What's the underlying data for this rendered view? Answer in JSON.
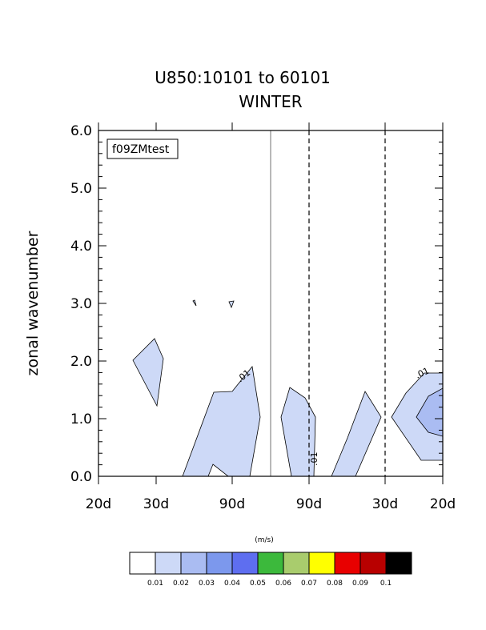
{
  "chart_data": {
    "type": "heatmap",
    "title_line1": "U850:10101 to 60101",
    "title_line2": "WINTER",
    "ylabel": "zonal wavenumber",
    "units_label": "(m/s)",
    "case_label": "f09ZMtest",
    "ylim": [
      0.0,
      6.0
    ],
    "y_ticks": [
      "0.0",
      "1.0",
      "2.0",
      "3.0",
      "4.0",
      "5.0",
      "6.0"
    ],
    "x_ticks": [
      "20d",
      "30d",
      "90d",
      "90d",
      "30d",
      "20d"
    ],
    "contour_labels": [
      ".01",
      ".01",
      ".01"
    ],
    "colorbar": {
      "colors": [
        "#ffffff",
        "#cdd9f7",
        "#aabcf2",
        "#7c98ed",
        "#5e6ef0",
        "#3cb93c",
        "#a9cc6d",
        "#ffff00",
        "#e80000",
        "#b80000",
        "#000000"
      ],
      "labels": [
        "0.01",
        "0.02",
        "0.03",
        "0.04",
        "0.05",
        "0.06",
        "0.07",
        "0.08",
        "0.09",
        "0.1"
      ]
    }
  }
}
